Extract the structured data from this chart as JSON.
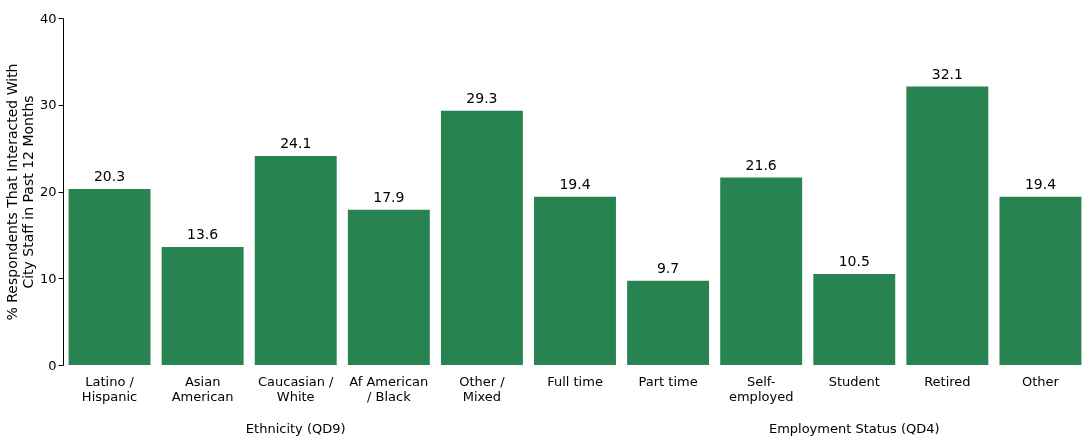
{
  "chart_data": {
    "type": "bar",
    "ylabel": "% Respondents That Interacted With City Staff in Past 12 Months",
    "categories": [
      "Latino / Hispanic",
      "Asian American",
      "Caucasian / White",
      "Af American / Black",
      "Other / Mixed",
      "Full time",
      "Part time",
      "Self-employed",
      "Student",
      "Retired",
      "Other"
    ],
    "values": [
      20.3,
      13.6,
      24.1,
      17.9,
      29.3,
      19.4,
      9.7,
      21.6,
      10.5,
      32.1,
      19.4
    ],
    "color": "#27834f",
    "ylim": [
      0,
      40
    ],
    "yticks": [
      0,
      10,
      20,
      30,
      40
    ],
    "grid": false,
    "data_labels": true,
    "annotations": [
      "Ethnicity (QD9)",
      "Employment Status (QD4)"
    ]
  }
}
